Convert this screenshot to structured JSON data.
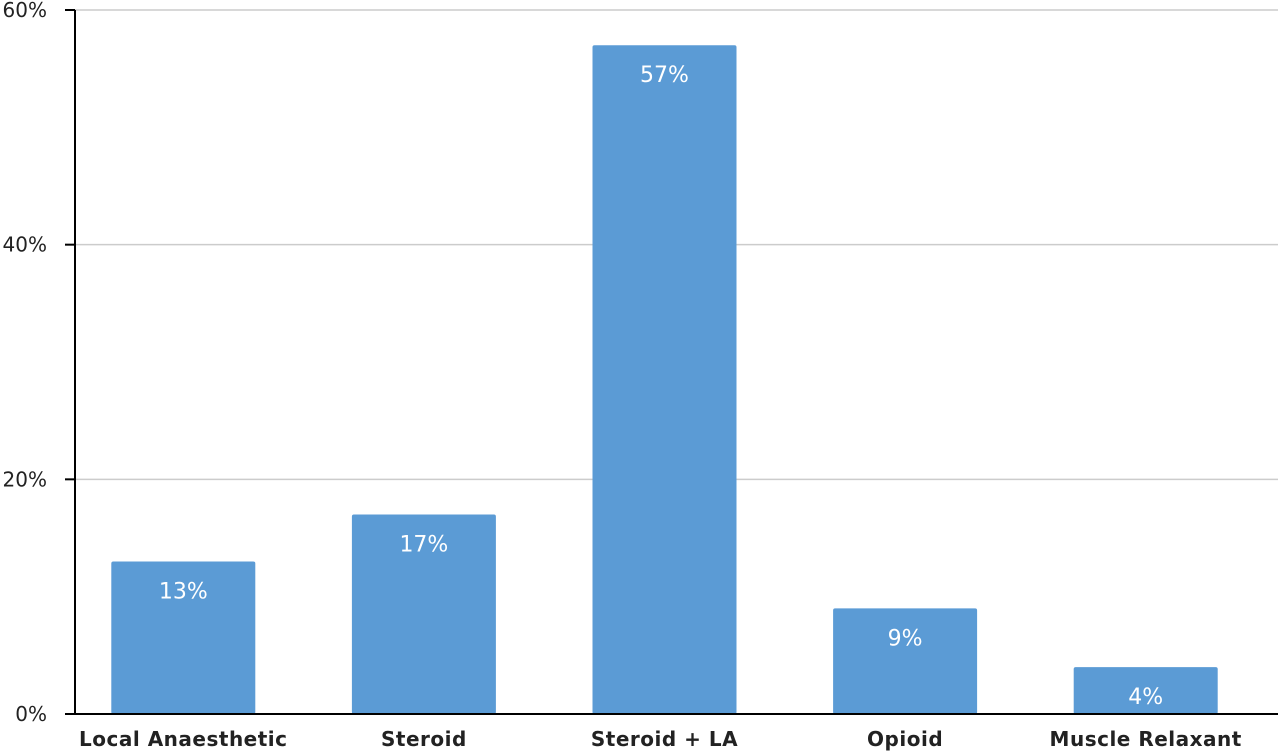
{
  "chart_data": {
    "type": "bar",
    "categories": [
      "Local Anaesthetic",
      "Steroid",
      "Steroid + LA",
      "Opioid",
      "Muscle Relaxant"
    ],
    "values": [
      13,
      17,
      57,
      9,
      4
    ],
    "data_labels": [
      "13%",
      "17%",
      "57%",
      "9%",
      "4%"
    ],
    "ylim": [
      0,
      60
    ],
    "y_ticks": [
      0,
      20,
      40,
      60
    ],
    "y_tick_labels": [
      "0%",
      "20%",
      "40%",
      "60%"
    ],
    "grid": true,
    "bar_color": "#5b9bd5",
    "title": "",
    "xlabel": "",
    "ylabel": ""
  }
}
